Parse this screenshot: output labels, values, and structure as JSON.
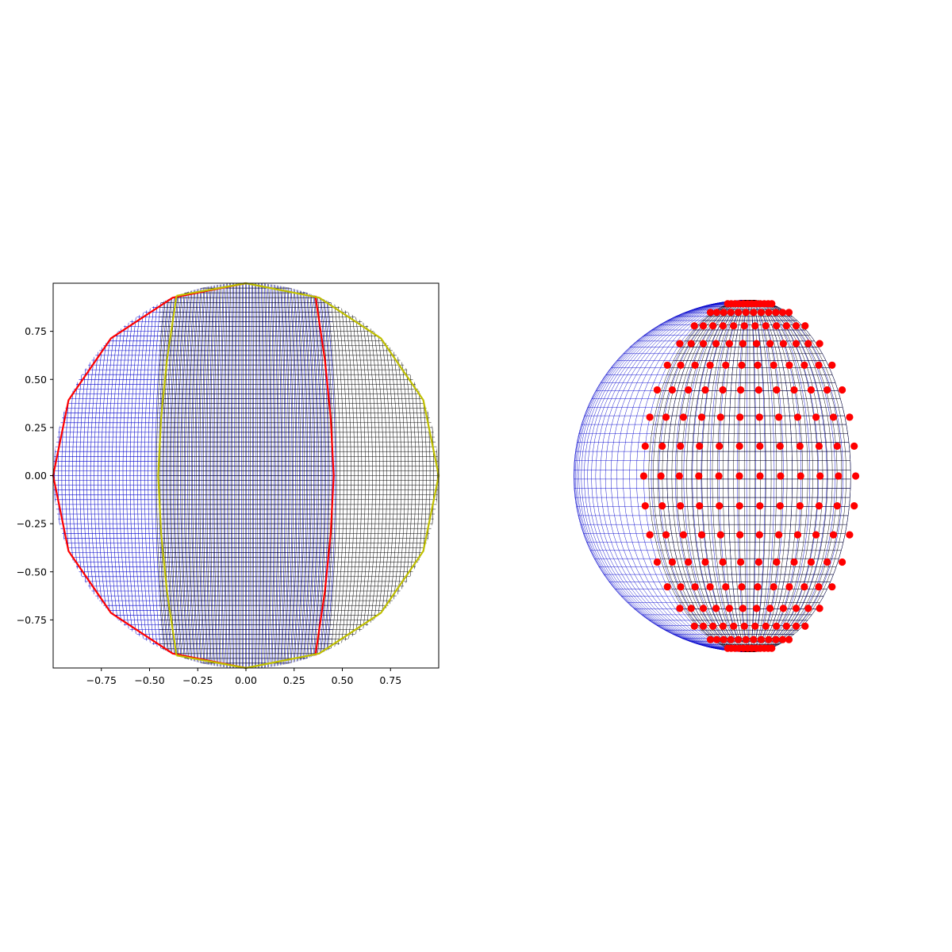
{
  "chart_data": [
    {
      "type": "scatter",
      "title": "",
      "xlabel": "",
      "ylabel": "",
      "xlim": [
        -1.0,
        1.0
      ],
      "ylim": [
        -1.0,
        1.0
      ],
      "grid": false,
      "x_ticks": [
        -0.75,
        -0.5,
        -0.25,
        0.0,
        0.25,
        0.5,
        0.75
      ],
      "x_tick_labels": [
        "−0.75",
        "−0.50",
        "−0.25",
        "0.00",
        "0.25",
        "0.50",
        "0.75"
      ],
      "y_ticks": [
        0.75,
        0.5,
        0.25,
        0.0,
        -0.25,
        -0.5,
        -0.75
      ],
      "y_tick_labels": [
        "0.75",
        "0.50",
        "0.25",
        "0.00",
        "−0.25",
        "−0.50",
        "−0.75"
      ],
      "mesh": {
        "shape": "unit disk (orthographic view of a sphere)",
        "grids": [
          {
            "color": "#0000cc",
            "x_range": [
              -1.0,
              0.45
            ]
          },
          {
            "color": "#000000",
            "x_range": [
              -0.45,
              1.0
            ]
          }
        ]
      },
      "boundary_curves": [
        {
          "color": "#ff0000",
          "points": [
            [
              0.0,
              1.0
            ],
            [
              -0.38,
              0.925
            ],
            [
              -0.7,
              0.714
            ],
            [
              -0.92,
              0.392
            ],
            [
              -1.0,
              0.0
            ],
            [
              -0.92,
              -0.392
            ],
            [
              -0.7,
              -0.714
            ],
            [
              -0.38,
              -0.925
            ],
            [
              0.0,
              -1.0
            ]
          ]
        },
        {
          "color": "#ff0000",
          "points": [
            [
              0.36,
              0.935
            ],
            [
              0.41,
              0.6
            ],
            [
              0.44,
              0.3
            ],
            [
              0.455,
              0.0
            ],
            [
              0.44,
              -0.3
            ],
            [
              0.41,
              -0.6
            ],
            [
              0.36,
              -0.935
            ]
          ]
        },
        {
          "color": "#bfbf00",
          "points": [
            [
              -0.36,
              0.935
            ],
            [
              -0.41,
              0.6
            ],
            [
              -0.44,
              0.3
            ],
            [
              -0.455,
              0.0
            ],
            [
              -0.44,
              -0.3
            ],
            [
              -0.41,
              -0.6
            ],
            [
              -0.36,
              -0.935
            ]
          ]
        },
        {
          "color": "#bfbf00",
          "points": [
            [
              -0.36,
              0.935
            ],
            [
              0.0,
              1.0
            ],
            [
              0.38,
              0.925
            ],
            [
              0.7,
              0.714
            ],
            [
              0.92,
              0.392
            ],
            [
              1.0,
              0.0
            ],
            [
              0.92,
              -0.392
            ],
            [
              0.7,
              -0.714
            ],
            [
              0.38,
              -0.925
            ],
            [
              0.0,
              -1.0
            ],
            [
              -0.36,
              -0.935
            ]
          ]
        }
      ]
    },
    {
      "type": "scatter",
      "title": "",
      "axes_visible": false,
      "view": {
        "azimuth_deg": -55,
        "sphere_radius": 1.0
      },
      "mesh": {
        "shape": "sphere",
        "grids": [
          {
            "color": "#0000cc",
            "longitude_range_deg": [
              -90,
              90
            ]
          },
          {
            "color": "#000000",
            "longitude_range_deg": [
              20,
              90
            ]
          }
        ]
      },
      "points": {
        "color": "#ff0000",
        "marker": "circle",
        "latitude_rows": 17,
        "longitude_range_deg": [
          18,
          92
        ],
        "points_per_row": 12
      }
    }
  ]
}
